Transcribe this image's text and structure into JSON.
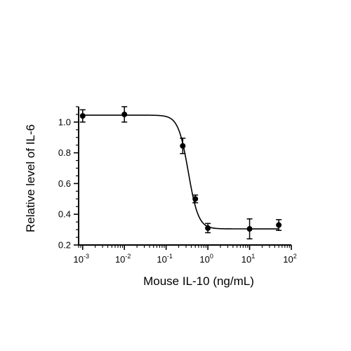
{
  "chart_data": {
    "type": "scatter",
    "title": "",
    "xlabel": "Mouse IL-10 (ng/mL)",
    "ylabel": "Relative level of IL-6",
    "x_scale": "log",
    "xlim": [
      0.0008,
      100
    ],
    "ylim": [
      0.2,
      1.1
    ],
    "x_ticks": [
      {
        "value": 0.001,
        "base": "10",
        "exp": "-3"
      },
      {
        "value": 0.01,
        "base": "10",
        "exp": "-2"
      },
      {
        "value": 0.1,
        "base": "10",
        "exp": "-1"
      },
      {
        "value": 1,
        "base": "10",
        "exp": "0"
      },
      {
        "value": 10,
        "base": "10",
        "exp": "1"
      },
      {
        "value": 100,
        "base": "10",
        "exp": "2"
      }
    ],
    "y_ticks": [
      {
        "value": 0.2,
        "label": "0.2"
      },
      {
        "value": 0.4,
        "label": "0.4"
      },
      {
        "value": 0.6,
        "label": "0.6"
      },
      {
        "value": 0.8,
        "label": "0.8"
      },
      {
        "value": 1.0,
        "label": "1.0"
      }
    ],
    "points": [
      {
        "x": 0.001,
        "y": 1.04,
        "err": 0.04
      },
      {
        "x": 0.01,
        "y": 1.05,
        "err": 0.05
      },
      {
        "x": 0.25,
        "y": 0.845,
        "err": 0.05
      },
      {
        "x": 0.5,
        "y": 0.5,
        "err": 0.025
      },
      {
        "x": 1,
        "y": 0.31,
        "err": 0.03
      },
      {
        "x": 10,
        "y": 0.305,
        "err": 0.065
      },
      {
        "x": 50,
        "y": 0.33,
        "err": 0.035
      }
    ],
    "fit": {
      "model": "4PL",
      "top": 1.045,
      "bottom": 0.305,
      "ec50": 0.34,
      "hill": 3.6
    },
    "grid": false,
    "legend": "none"
  }
}
